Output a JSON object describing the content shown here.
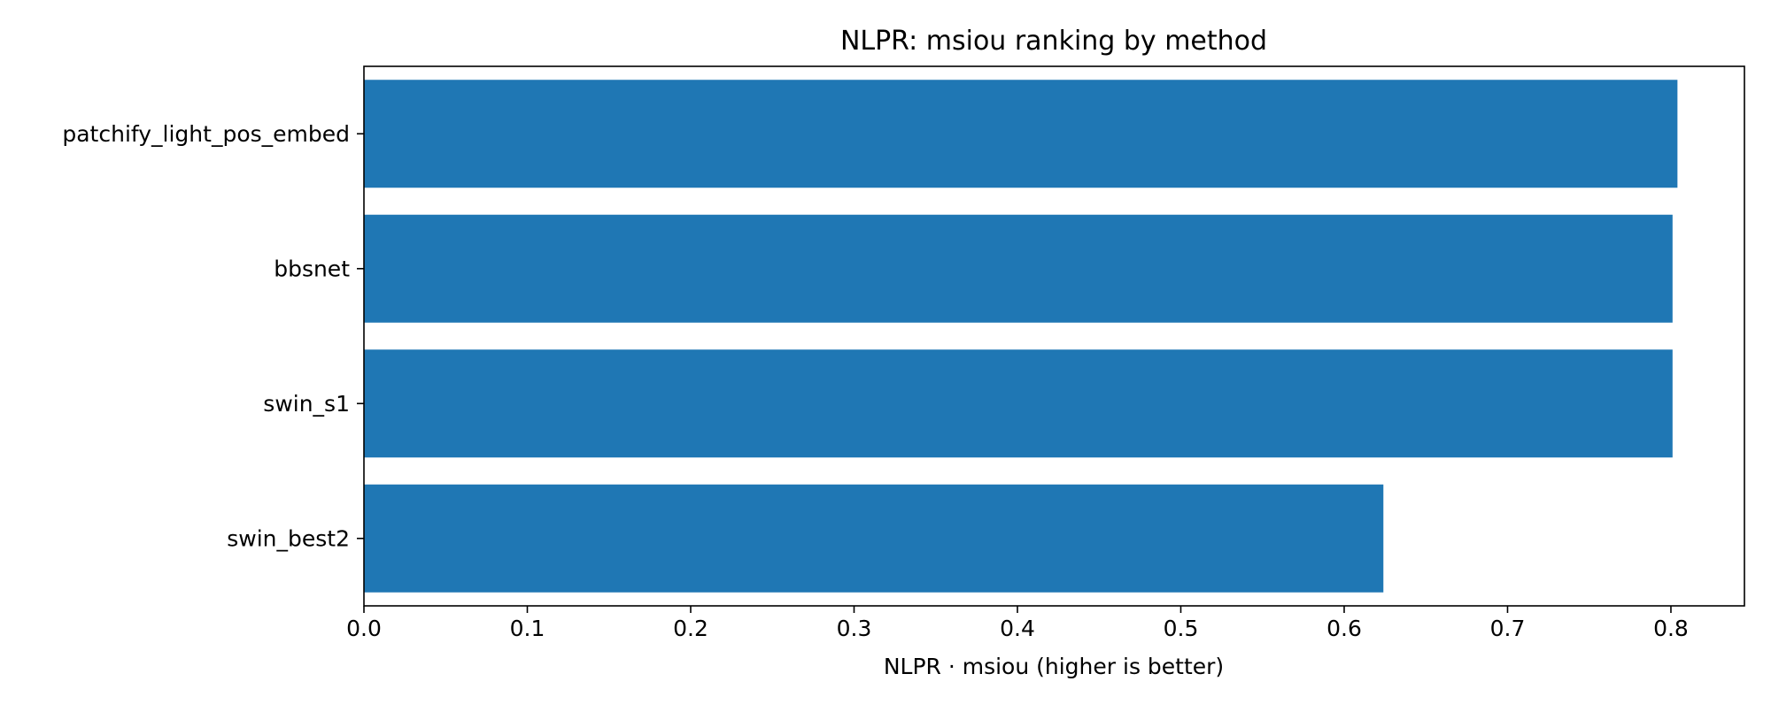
{
  "chart_data": {
    "type": "bar",
    "orientation": "horizontal",
    "title": "NLPR: msiou ranking by method",
    "xlabel": "NLPR · msiou (higher is better)",
    "ylabel": "",
    "categories": [
      "patchify_light_pos_embed",
      "bbsnet",
      "swin_s1",
      "swin_best2"
    ],
    "values": [
      0.804,
      0.801,
      0.801,
      0.624
    ],
    "xlim": [
      0,
      0.845
    ],
    "xticks": [
      0.0,
      0.1,
      0.2,
      0.3,
      0.4,
      0.5,
      0.6,
      0.7,
      0.8
    ],
    "xtick_labels": [
      "0.0",
      "0.1",
      "0.2",
      "0.3",
      "0.4",
      "0.5",
      "0.6",
      "0.7",
      "0.8"
    ],
    "bar_color": "#1f77b4",
    "grid": false,
    "legend": "none"
  }
}
